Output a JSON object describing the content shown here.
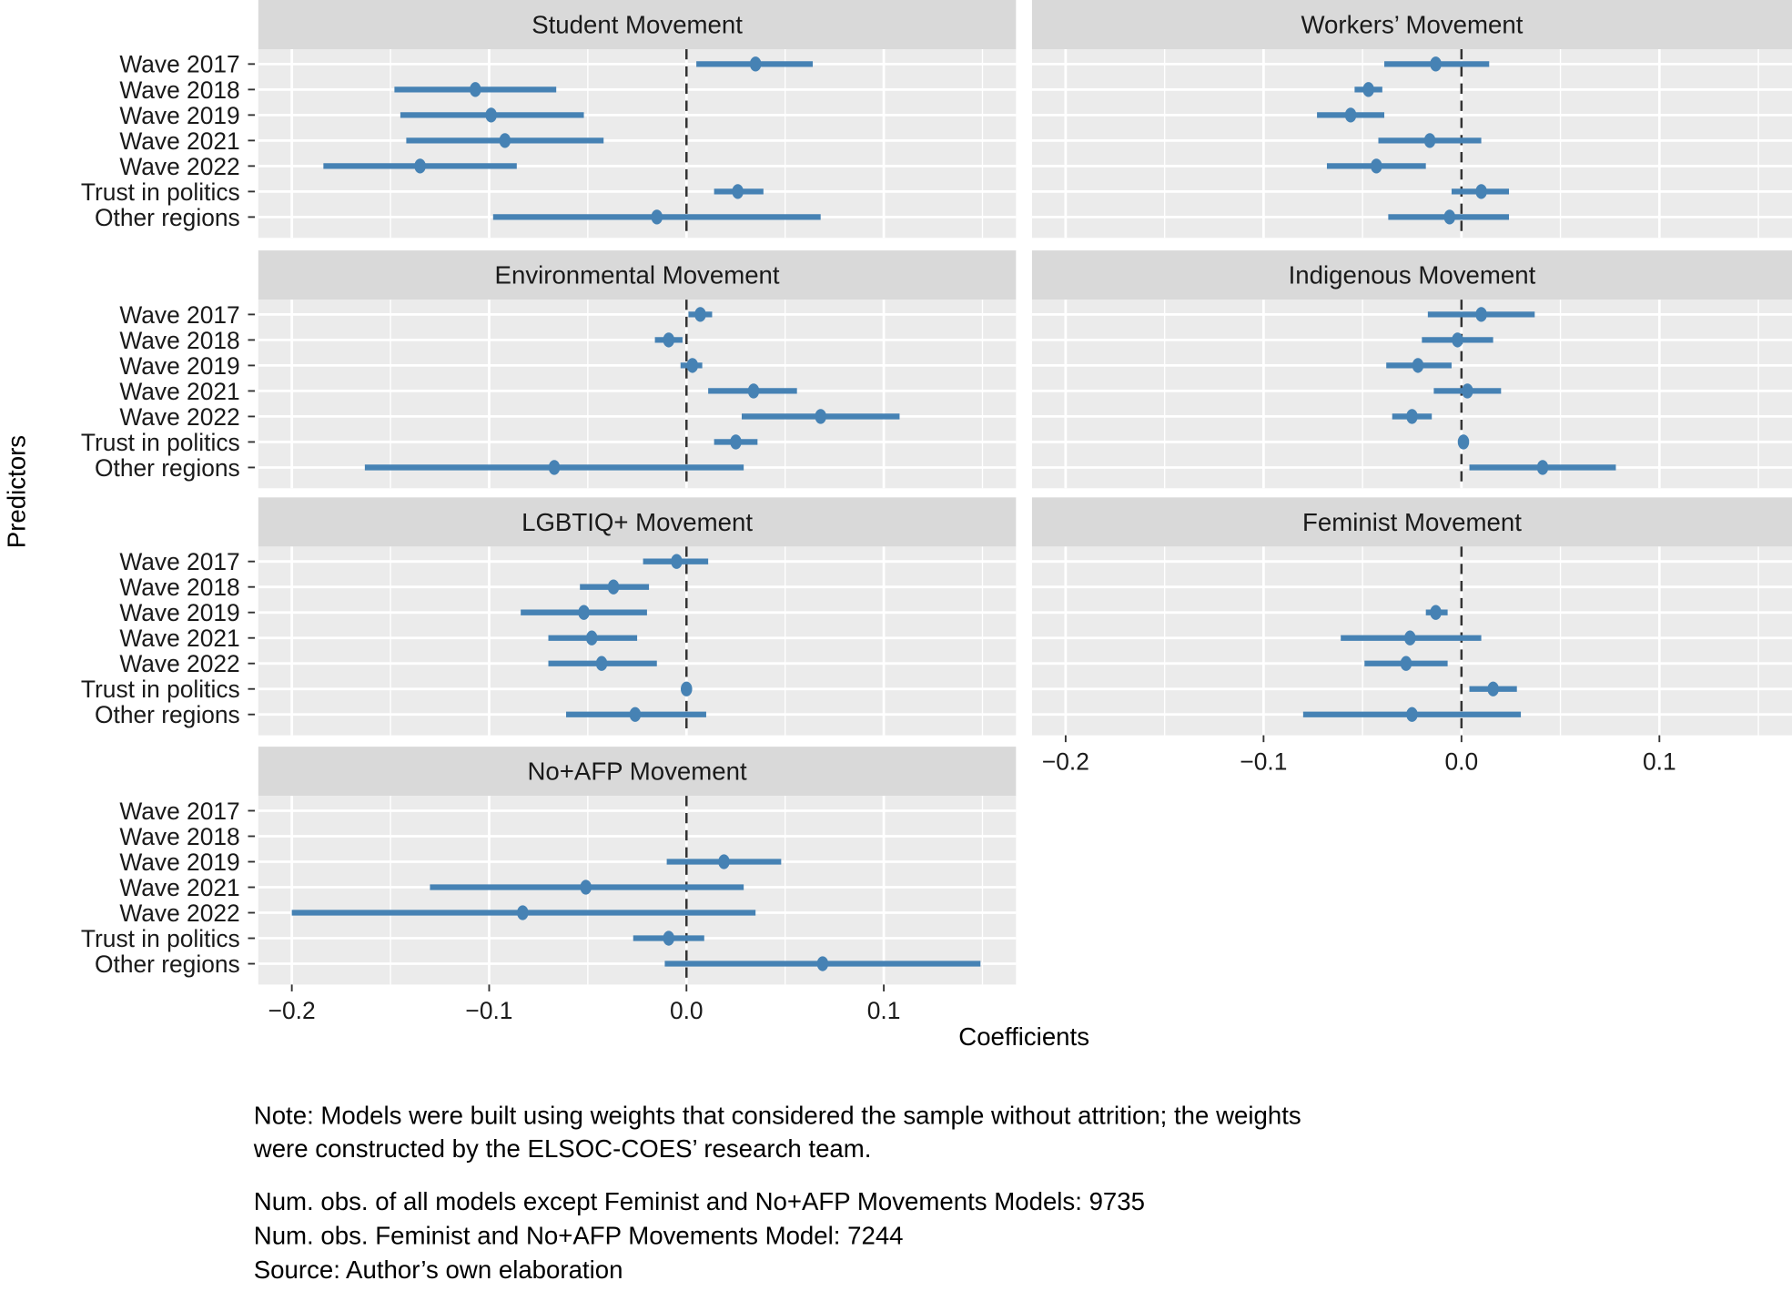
{
  "chart_data": {
    "type": "scatter",
    "subtype": "coefficient-plot-faceted",
    "xlabel": "Coefficients",
    "ylabel": "Predictors",
    "x_ticks": [
      -0.2,
      -0.1,
      0.0,
      0.1
    ],
    "x_tick_labels": [
      "−0.2",
      "−0.1",
      "0.0",
      "0.1"
    ],
    "xlim": [
      -0.217,
      0.167
    ],
    "reference_line": 0.0,
    "grid": true,
    "predictors": [
      "Wave 2017",
      "Wave 2018",
      "Wave 2019",
      "Wave 2021",
      "Wave 2022",
      "Trust in politics",
      "Other regions"
    ],
    "series_color": "#4682b4",
    "panels": [
      {
        "title": "Student Movement",
        "estimates": [
          {
            "predictor": "Wave 2017",
            "coef": 0.035,
            "lo": 0.005,
            "hi": 0.064
          },
          {
            "predictor": "Wave 2018",
            "coef": -0.107,
            "lo": -0.148,
            "hi": -0.066
          },
          {
            "predictor": "Wave 2019",
            "coef": -0.099,
            "lo": -0.145,
            "hi": -0.052
          },
          {
            "predictor": "Wave 2021",
            "coef": -0.092,
            "lo": -0.142,
            "hi": -0.042
          },
          {
            "predictor": "Wave 2022",
            "coef": -0.135,
            "lo": -0.184,
            "hi": -0.086
          },
          {
            "predictor": "Trust in politics",
            "coef": 0.026,
            "lo": 0.014,
            "hi": 0.039
          },
          {
            "predictor": "Other regions",
            "coef": -0.015,
            "lo": -0.098,
            "hi": 0.068
          }
        ]
      },
      {
        "title": "Workers’ Movement",
        "estimates": [
          {
            "predictor": "Wave 2017",
            "coef": -0.013,
            "lo": -0.039,
            "hi": 0.014
          },
          {
            "predictor": "Wave 2018",
            "coef": -0.047,
            "lo": -0.054,
            "hi": -0.04
          },
          {
            "predictor": "Wave 2019",
            "coef": -0.056,
            "lo": -0.073,
            "hi": -0.039
          },
          {
            "predictor": "Wave 2021",
            "coef": -0.016,
            "lo": -0.042,
            "hi": 0.01
          },
          {
            "predictor": "Wave 2022",
            "coef": -0.043,
            "lo": -0.068,
            "hi": -0.018
          },
          {
            "predictor": "Trust in politics",
            "coef": 0.01,
            "lo": -0.005,
            "hi": 0.024
          },
          {
            "predictor": "Other regions",
            "coef": -0.006,
            "lo": -0.037,
            "hi": 0.024
          }
        ]
      },
      {
        "title": "Environmental Movement",
        "estimates": [
          {
            "predictor": "Wave 2017",
            "coef": 0.007,
            "lo": 0.001,
            "hi": 0.013
          },
          {
            "predictor": "Wave 2018",
            "coef": -0.009,
            "lo": -0.016,
            "hi": -0.002
          },
          {
            "predictor": "Wave 2019",
            "coef": 0.003,
            "lo": -0.003,
            "hi": 0.008
          },
          {
            "predictor": "Wave 2021",
            "coef": 0.034,
            "lo": 0.011,
            "hi": 0.056
          },
          {
            "predictor": "Wave 2022",
            "coef": 0.068,
            "lo": 0.028,
            "hi": 0.108
          },
          {
            "predictor": "Trust in politics",
            "coef": 0.025,
            "lo": 0.014,
            "hi": 0.036
          },
          {
            "predictor": "Other regions",
            "coef": -0.067,
            "lo": -0.163,
            "hi": 0.029
          }
        ]
      },
      {
        "title": "Indigenous Movement",
        "estimates": [
          {
            "predictor": "Wave 2017",
            "coef": 0.01,
            "lo": -0.017,
            "hi": 0.037
          },
          {
            "predictor": "Wave 2018",
            "coef": -0.002,
            "lo": -0.02,
            "hi": 0.016
          },
          {
            "predictor": "Wave 2019",
            "coef": -0.022,
            "lo": -0.038,
            "hi": -0.005
          },
          {
            "predictor": "Wave 2021",
            "coef": 0.003,
            "lo": -0.014,
            "hi": 0.02
          },
          {
            "predictor": "Wave 2022",
            "coef": -0.025,
            "lo": -0.035,
            "hi": -0.015
          },
          {
            "predictor": "Trust in politics",
            "coef": 0.001,
            "lo": -0.001,
            "hi": 0.003
          },
          {
            "predictor": "Other regions",
            "coef": 0.041,
            "lo": 0.004,
            "hi": 0.078
          }
        ]
      },
      {
        "title": "LGBTIQ+ Movement",
        "estimates": [
          {
            "predictor": "Wave 2017",
            "coef": -0.005,
            "lo": -0.022,
            "hi": 0.011
          },
          {
            "predictor": "Wave 2018",
            "coef": -0.037,
            "lo": -0.054,
            "hi": -0.019
          },
          {
            "predictor": "Wave 2019",
            "coef": -0.052,
            "lo": -0.084,
            "hi": -0.02
          },
          {
            "predictor": "Wave 2021",
            "coef": -0.048,
            "lo": -0.07,
            "hi": -0.025
          },
          {
            "predictor": "Wave 2022",
            "coef": -0.043,
            "lo": -0.07,
            "hi": -0.015
          },
          {
            "predictor": "Trust in politics",
            "coef": 0.0,
            "lo": -0.001,
            "hi": 0.001
          },
          {
            "predictor": "Other regions",
            "coef": -0.026,
            "lo": -0.061,
            "hi": 0.01
          }
        ]
      },
      {
        "title": "Feminist Movement",
        "estimates": [
          {
            "predictor": "Wave 2019",
            "coef": -0.013,
            "lo": -0.018,
            "hi": -0.007
          },
          {
            "predictor": "Wave 2021",
            "coef": -0.026,
            "lo": -0.061,
            "hi": 0.01
          },
          {
            "predictor": "Wave 2022",
            "coef": -0.028,
            "lo": -0.049,
            "hi": -0.007
          },
          {
            "predictor": "Trust in politics",
            "coef": 0.016,
            "lo": 0.004,
            "hi": 0.028
          },
          {
            "predictor": "Other regions",
            "coef": -0.025,
            "lo": -0.08,
            "hi": 0.03
          }
        ]
      },
      {
        "title": "No+AFP Movement",
        "estimates": [
          {
            "predictor": "Wave 2019",
            "coef": 0.019,
            "lo": -0.01,
            "hi": 0.048
          },
          {
            "predictor": "Wave 2021",
            "coef": -0.051,
            "lo": -0.13,
            "hi": 0.029
          },
          {
            "predictor": "Wave 2022",
            "coef": -0.083,
            "lo": -0.2,
            "hi": 0.035
          },
          {
            "predictor": "Trust in politics",
            "coef": -0.009,
            "lo": -0.027,
            "hi": 0.009
          },
          {
            "predictor": "Other regions",
            "coef": 0.069,
            "lo": -0.011,
            "hi": 0.149
          }
        ]
      }
    ]
  },
  "notes": {
    "note_line1": "Note: Models were built using weights that considered the sample without attrition; the weights",
    "note_line2": "were constructed by the ELSOC-COES’ research team.",
    "obs_all": "Num. obs. of all models except Feminist and No+AFP Movements Models: 9735",
    "obs_feminist_afp": "Num. obs. Feminist and No+AFP Movements Model: 7244",
    "source": "Source: Author’s own elaboration"
  }
}
